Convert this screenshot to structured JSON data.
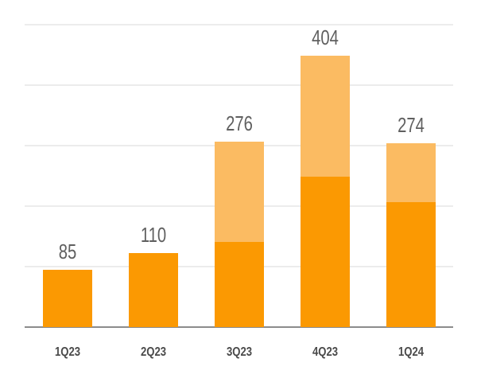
{
  "chart_data": {
    "type": "bar",
    "stacked": true,
    "title": "",
    "xlabel": "",
    "ylabel": "",
    "categories": [
      "1Q23",
      "2Q23",
      "3Q23",
      "4Q23",
      "1Q24"
    ],
    "totals": [
      85,
      110,
      276,
      404,
      274
    ],
    "series": [
      {
        "name": "base",
        "color": "#fb9902",
        "values": [
          85,
          110,
          127,
          224,
          186
        ]
      },
      {
        "name": "additional",
        "color": "#fbbb62",
        "values": [
          0,
          0,
          149,
          180,
          88
        ]
      }
    ],
    "ylim": [
      0,
      450
    ],
    "gridlines": [
      90,
      180,
      270,
      360,
      450
    ],
    "grid": true,
    "legend": "none"
  },
  "labels": {
    "totals": [
      "85",
      "110",
      "276",
      "404",
      "274"
    ],
    "categories": [
      "1Q23",
      "2Q23",
      "3Q23",
      "4Q23",
      "1Q24"
    ]
  },
  "colors": {
    "dark": "#fb9902",
    "light": "#fbbb62",
    "grid": "#ececec",
    "axis": "#8c8c8c"
  }
}
